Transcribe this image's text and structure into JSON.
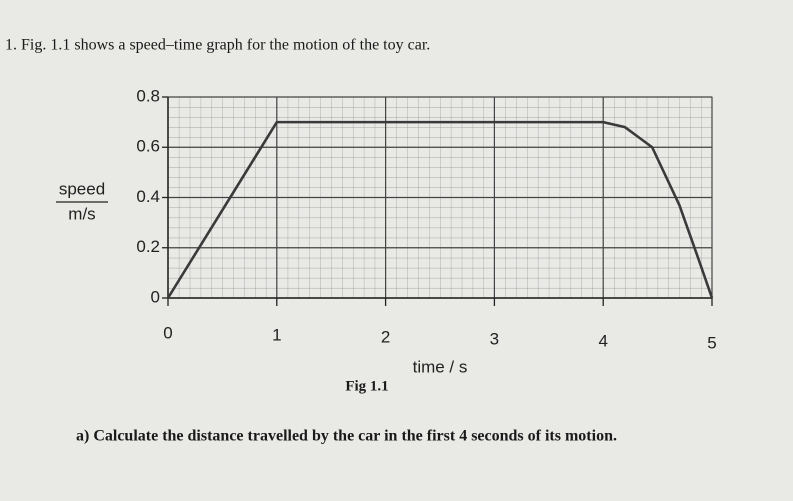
{
  "question_intro": "1.  Fig. 1.1 shows a speed–time graph for the motion of the toy car.",
  "figure_caption": "Fig 1.1",
  "question_a": "a) Calculate the distance travelled by the car in the first 4 seconds of its motion.",
  "chart_data": {
    "type": "line",
    "y_label": "speed",
    "y_unit": "m/s",
    "x_label": "time / s",
    "x": [
      0,
      1,
      4,
      4.2,
      4.45,
      4.7,
      4.88,
      5
    ],
    "values": [
      0,
      0.7,
      0.7,
      0.68,
      0.6,
      0.37,
      0.15,
      0
    ],
    "color": "#3a3a3a",
    "xlim": [
      0,
      5
    ],
    "ylim": [
      0,
      0.8
    ],
    "xticks": [
      0,
      1,
      2,
      3,
      4,
      5
    ],
    "yticks": [
      0,
      0.2,
      0.4,
      0.6,
      0.8
    ],
    "grid": true
  }
}
